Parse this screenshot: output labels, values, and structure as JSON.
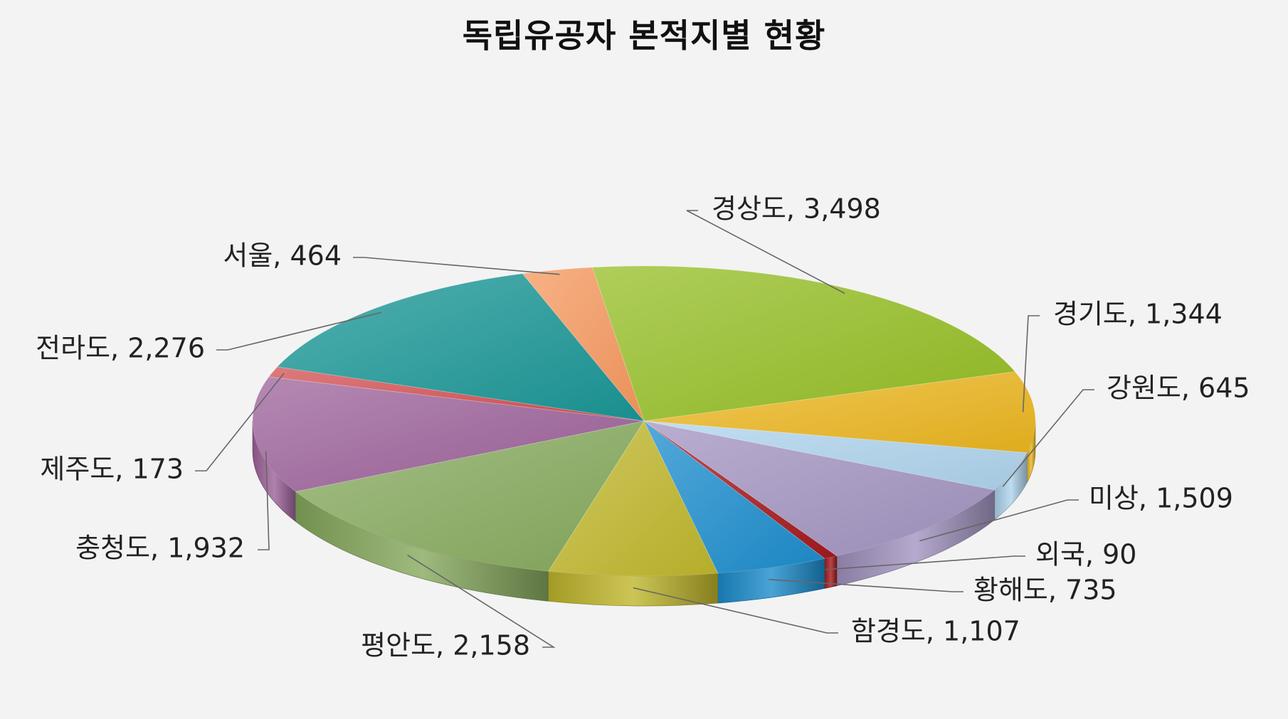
{
  "chart_data": {
    "type": "pie",
    "title": "독립유공자 본적지별 현황",
    "slices": [
      {
        "label": "경상도",
        "value": 3498,
        "display": "3,498",
        "color": "#94bd24"
      },
      {
        "label": "경기도",
        "value": 1344,
        "display": "1,344",
        "color": "#ebb51f"
      },
      {
        "label": "강원도",
        "value": 645,
        "display": "645",
        "color": "#aed3ec"
      },
      {
        "label": "미상",
        "value": 1509,
        "display": "1,509",
        "color": "#a293c0"
      },
      {
        "label": "외국",
        "value": 90,
        "display": "90",
        "color": "#a3191d"
      },
      {
        "label": "황해도",
        "value": 735,
        "display": "735",
        "color": "#1b8ccc"
      },
      {
        "label": "함경도",
        "value": 1107,
        "display": "1,107",
        "color": "#bfb62b"
      },
      {
        "label": "평안도",
        "value": 2158,
        "display": "2,158",
        "color": "#86a95d"
      },
      {
        "label": "충청도",
        "value": 1932,
        "display": "1,932",
        "color": "#9c6199"
      },
      {
        "label": "제주도",
        "value": 173,
        "display": "173",
        "color": "#d24f51"
      },
      {
        "label": "전라도",
        "value": 2276,
        "display": "2,276",
        "color": "#1a9595"
      },
      {
        "label": "서울",
        "value": 464,
        "display": "464",
        "color": "#f5985e"
      }
    ],
    "legend": "none",
    "data_labels": "outside, with leader lines"
  }
}
